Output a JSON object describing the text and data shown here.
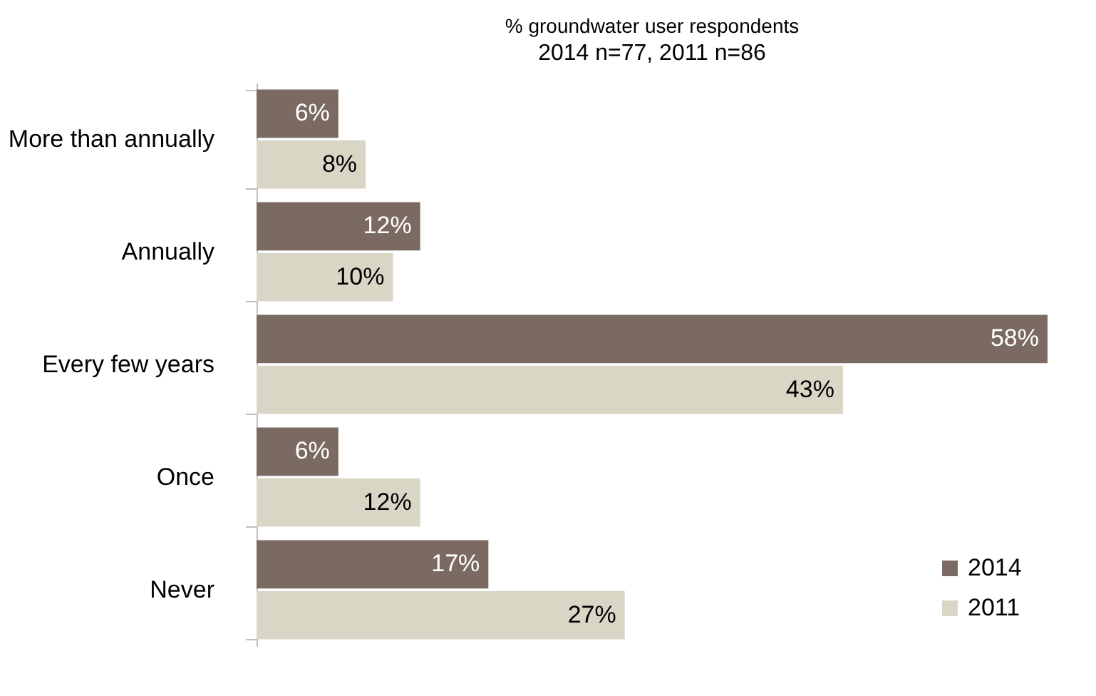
{
  "chart_data": {
    "type": "bar",
    "orientation": "horizontal",
    "title": "% groundwater user respondents",
    "subtitle": "2014 n=77, 2011 n=86",
    "categories": [
      "More than annually",
      "Annually",
      "Every few years",
      "Once",
      "Never"
    ],
    "series": [
      {
        "name": "2014",
        "color": "#7a6a62",
        "values": [
          6,
          12,
          58,
          6,
          17
        ],
        "value_labels": [
          "6%",
          "12%",
          "58%",
          "6%",
          "17%"
        ]
      },
      {
        "name": "2011",
        "color": "#d9d6c6",
        "values": [
          8,
          10,
          43,
          12,
          27
        ],
        "value_labels": [
          "8%",
          "10%",
          "43%",
          "12%",
          "27%"
        ]
      }
    ],
    "grid": false,
    "legend": "bottom right"
  }
}
